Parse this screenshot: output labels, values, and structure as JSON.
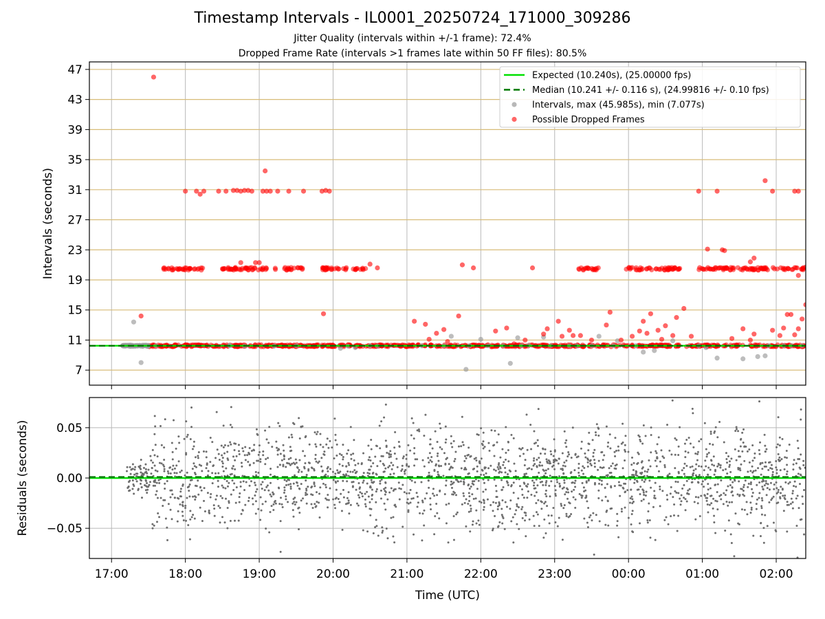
{
  "title": "Timestamp Intervals - IL0001_20250724_171000_309286",
  "subtitle_jitter": "Jitter Quality (intervals within +/-1 frame): 72.4%",
  "subtitle_dropped": "Dropped Frame Rate (intervals >1 frames late within 50 FF files): 80.5%",
  "colors": {
    "expected": "#00e000",
    "median": "#007700",
    "intervals": "#9a9a9a",
    "dropped": "#ff0000",
    "hgrid": "#d8bc78",
    "vgrid": "#b8b8b8",
    "residual": "#6e6e6e"
  },
  "chart_data": [
    {
      "type": "scatter",
      "ylabel": "Intervals (seconds)",
      "xlim": [
        -0.3,
        9.4
      ],
      "ylim": [
        5.0,
        48.0
      ],
      "y_ticks": [
        7,
        11,
        15,
        19,
        23,
        27,
        31,
        35,
        39,
        43,
        47
      ],
      "hgrid": true,
      "vgrid": true,
      "legend_position": "top-right",
      "legend": [
        {
          "label": "Expected (10.240s), (25.00000 fps)",
          "kind": "solid-line"
        },
        {
          "label": "Median (10.241 +/- 0.116 s), (24.99816 +/- 0.10 fps)",
          "kind": "dashed-line"
        },
        {
          "label": "Intervals, max (45.985s), min (7.077s)",
          "kind": "gray-dot"
        },
        {
          "label": "Possible Dropped Frames",
          "kind": "red-dot"
        }
      ],
      "expected_value": 10.24,
      "median_value": 10.241,
      "series": [
        {
          "name": "Intervals, max (45.985s), min (7.077s)",
          "points": [
            [
              0.15,
              10.24
            ],
            [
              0.25,
              10.24
            ],
            [
              0.35,
              10.24
            ],
            [
              0.3,
              13.4
            ],
            [
              0.4,
              8.0
            ],
            [
              0.5,
              10.24
            ],
            [
              0.6,
              10.24
            ],
            [
              1.6,
              10.3
            ],
            [
              1.8,
              10.2
            ],
            [
              1.6,
              10.24
            ],
            [
              2.2,
              10.2
            ],
            [
              2.5,
              10.24
            ],
            [
              3.1,
              9.9
            ],
            [
              3.3,
              10.0
            ],
            [
              3.2,
              10.2
            ],
            [
              3.5,
              10.24
            ],
            [
              3.6,
              10.2
            ],
            [
              4.2,
              10.24
            ],
            [
              4.5,
              10.24
            ],
            [
              4.6,
              11.5
            ],
            [
              4.85,
              10.24
            ],
            [
              4.8,
              7.1
            ],
            [
              5.0,
              11.1
            ],
            [
              5.1,
              10.24
            ],
            [
              5.3,
              10.24
            ],
            [
              5.4,
              7.9
            ],
            [
              5.5,
              11.3
            ],
            [
              5.55,
              10.24
            ],
            [
              5.65,
              10.3
            ],
            [
              5.85,
              11.4
            ],
            [
              5.95,
              10.24
            ],
            [
              6.2,
              10.24
            ],
            [
              6.3,
              10.24
            ],
            [
              6.5,
              10.24
            ],
            [
              6.6,
              11.5
            ],
            [
              6.8,
              10.24
            ],
            [
              6.85,
              10.9
            ],
            [
              7.1,
              10.24
            ],
            [
              7.2,
              9.4
            ],
            [
              7.35,
              9.6
            ],
            [
              7.6,
              10.9
            ],
            [
              7.95,
              10.24
            ],
            [
              8.05,
              10.0
            ],
            [
              8.2,
              8.6
            ],
            [
              8.55,
              8.5
            ],
            [
              8.75,
              8.8
            ],
            [
              8.85,
              8.9
            ],
            [
              8.9,
              10.24
            ],
            [
              9.1,
              10.24
            ],
            [
              9.2,
              10.24
            ],
            [
              9.35,
              10.24
            ]
          ]
        },
        {
          "name": "Possible Dropped Frames",
          "points": [
            [
              0.57,
              45.98
            ],
            [
              0.4,
              14.2
            ],
            [
              1.75,
              21.3
            ],
            [
              1.95,
              21.3
            ],
            [
              1.0,
              30.8
            ],
            [
              1.15,
              30.8
            ],
            [
              1.2,
              30.4
            ],
            [
              1.25,
              30.8
            ],
            [
              1.45,
              30.8
            ],
            [
              1.55,
              30.8
            ],
            [
              1.65,
              30.9
            ],
            [
              1.7,
              30.9
            ],
            [
              1.75,
              30.8
            ],
            [
              1.8,
              30.9
            ],
            [
              1.85,
              30.9
            ],
            [
              1.9,
              30.8
            ],
            [
              2.05,
              30.8
            ],
            [
              2.1,
              30.8
            ],
            [
              2.15,
              30.8
            ],
            [
              2.25,
              30.8
            ],
            [
              2.4,
              30.8
            ],
            [
              2.05,
              20.6
            ],
            [
              2.0,
              21.3
            ],
            [
              2.08,
              33.5
            ],
            [
              2.6,
              30.8
            ],
            [
              2.85,
              30.8
            ],
            [
              2.9,
              30.9
            ],
            [
              2.95,
              30.8
            ],
            [
              2.87,
              14.5
            ],
            [
              3.5,
              21.1
            ],
            [
              3.6,
              20.6
            ],
            [
              4.1,
              13.5
            ],
            [
              4.25,
              13.1
            ],
            [
              4.3,
              11.1
            ],
            [
              4.4,
              11.9
            ],
            [
              4.5,
              12.4
            ],
            [
              4.55,
              10.8
            ],
            [
              4.7,
              14.2
            ],
            [
              4.75,
              21.0
            ],
            [
              4.9,
              20.6
            ],
            [
              5.2,
              12.2
            ],
            [
              5.35,
              12.6
            ],
            [
              5.45,
              10.5
            ],
            [
              5.6,
              11.0
            ],
            [
              5.7,
              20.6
            ],
            [
              5.85,
              11.8
            ],
            [
              5.9,
              12.5
            ],
            [
              6.05,
              13.5
            ],
            [
              6.1,
              11.5
            ],
            [
              6.2,
              12.3
            ],
            [
              6.25,
              11.6
            ],
            [
              6.35,
              11.6
            ],
            [
              6.5,
              11.0
            ],
            [
              6.7,
              13.0
            ],
            [
              6.75,
              14.7
            ],
            [
              6.9,
              11.0
            ],
            [
              7.05,
              11.5
            ],
            [
              7.15,
              12.2
            ],
            [
              7.25,
              11.9
            ],
            [
              7.2,
              13.5
            ],
            [
              7.3,
              14.5
            ],
            [
              7.4,
              12.3
            ],
            [
              7.45,
              11.1
            ],
            [
              7.5,
              12.9
            ],
            [
              7.6,
              11.6
            ],
            [
              7.65,
              14.0
            ],
            [
              7.75,
              15.2
            ],
            [
              7.85,
              11.5
            ],
            [
              7.95,
              30.8
            ],
            [
              8.07,
              23.1
            ],
            [
              8.4,
              11.2
            ],
            [
              8.55,
              12.5
            ],
            [
              8.65,
              11.0
            ],
            [
              8.7,
              11.8
            ],
            [
              8.85,
              32.2
            ],
            [
              8.95,
              12.3
            ],
            [
              9.05,
              11.6
            ],
            [
              9.1,
              12.6
            ],
            [
              9.15,
              14.4
            ],
            [
              9.2,
              14.4
            ],
            [
              9.25,
              11.7
            ],
            [
              9.3,
              12.5
            ],
            [
              9.35,
              13.8
            ],
            [
              9.4,
              15.7
            ],
            [
              9.3,
              19.6
            ],
            [
              9.4,
              20.7
            ],
            [
              8.27,
              23.0
            ],
            [
              8.3,
              22.9
            ],
            [
              8.65,
              21.4
            ],
            [
              8.7,
              21.9
            ],
            [
              8.95,
              30.8
            ],
            [
              8.2,
              30.8
            ],
            [
              9.25,
              30.8
            ],
            [
              9.3,
              30.8
            ]
          ]
        }
      ]
    },
    {
      "type": "scatter",
      "ylabel": "Residuals (seconds)",
      "xlabel": "Time (UTC)",
      "xlim": [
        -0.3,
        9.4
      ],
      "ylim": [
        -0.08,
        0.08
      ],
      "y_ticks": [
        -0.05,
        0.0,
        0.05
      ],
      "y_tick_labels": [
        "−0.05",
        "0.00",
        "0.05"
      ],
      "x_ticks": [
        0,
        1,
        2,
        3,
        4,
        5,
        6,
        7,
        8,
        9
      ],
      "x_tick_labels": [
        "17:00",
        "18:00",
        "19:00",
        "20:00",
        "21:00",
        "22:00",
        "23:00",
        "00:00",
        "01:00",
        "02:00"
      ],
      "grid": true,
      "residual_x_range": [
        0.2,
        9.4
      ],
      "residual_std": 0.025
    }
  ]
}
